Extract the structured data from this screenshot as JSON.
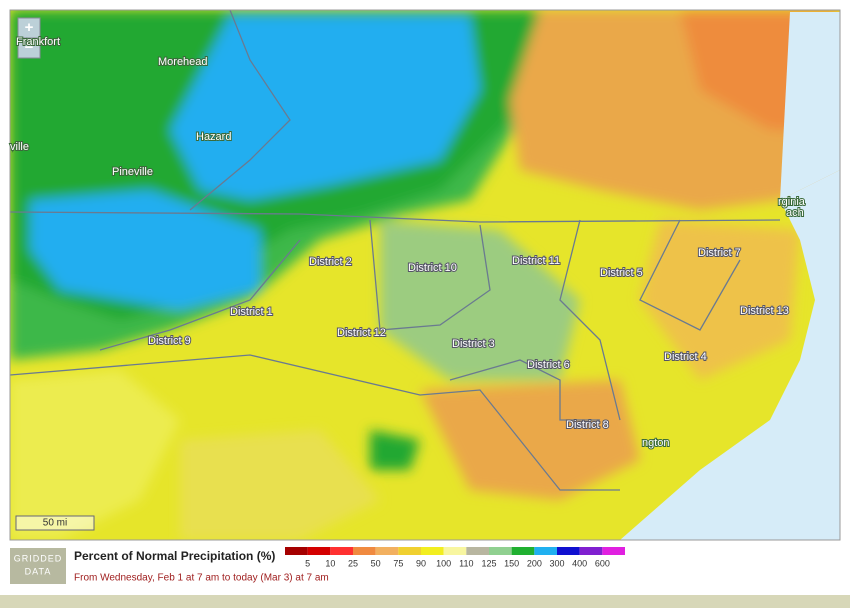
{
  "map": {
    "zoom_in": "+",
    "zoom_out": "−",
    "scale": "50 mi",
    "places": [
      "Frankfort",
      "Morehead",
      "Hazard",
      "Pineville",
      "ville",
      "rginia",
      "ach",
      "ngton"
    ],
    "districts": [
      "District 2",
      "District 10",
      "District 11",
      "District 5",
      "District 7",
      "District 1",
      "District 12",
      "District 9",
      "District 3",
      "District 13",
      "District 6",
      "District 4",
      "District 8"
    ]
  },
  "legend": {
    "badge": "GRIDDED DATA",
    "title": "Percent of Normal Precipitation (%)",
    "subtitle": "From Wednesday, Feb 1 at 7 am to today (Mar 3) at 7 am",
    "colors": [
      "#a50000",
      "#d40000",
      "#ff3030",
      "#f08a40",
      "#f2b060",
      "#f0d030",
      "#f2ee20",
      "#f8f6a0",
      "#b8b6a0",
      "#90d090",
      "#20b030",
      "#20b0f0",
      "#1010d0",
      "#8020d0",
      "#e020e0"
    ],
    "ticks": [
      5,
      10,
      25,
      50,
      75,
      90,
      100,
      110,
      125,
      150,
      200,
      300,
      400,
      600
    ]
  }
}
